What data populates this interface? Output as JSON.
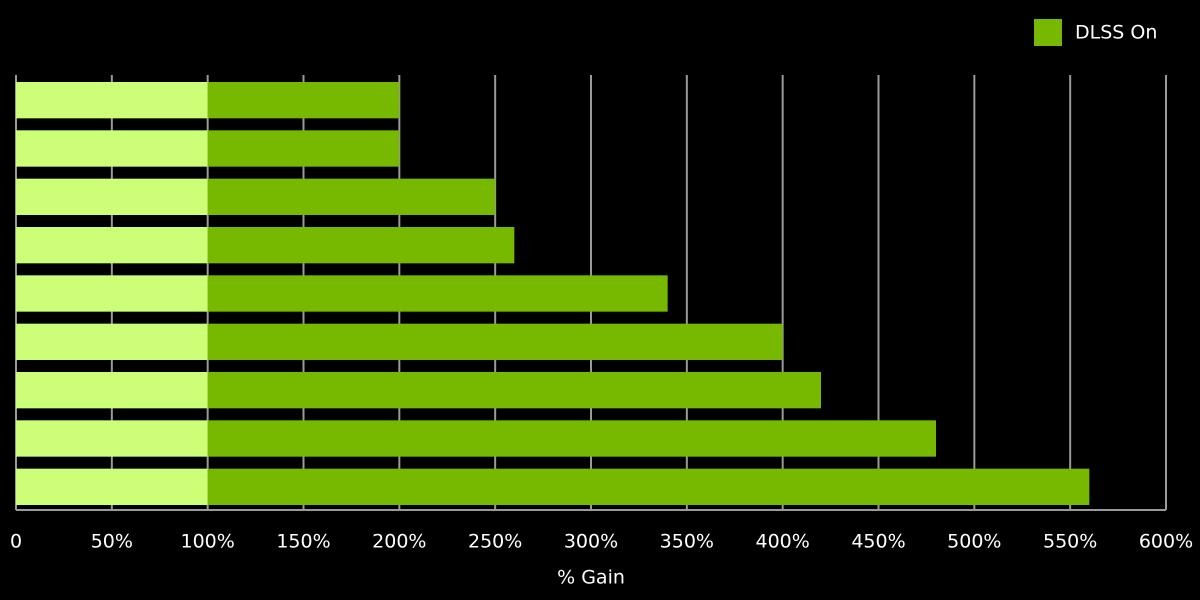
{
  "chart_data": {
    "type": "stacked-bar-horizontal",
    "x_label": "% Gain",
    "categories": [
      null,
      null,
      null,
      null,
      null,
      null,
      null,
      null,
      null
    ],
    "series": [
      {
        "color": "#ccff77",
        "values": [
          100,
          100,
          100,
          100,
          100,
          100,
          100,
          100,
          100
        ]
      },
      {
        "name": "DLSS On",
        "color": "#76b900",
        "values": [
          100,
          100,
          150,
          160,
          240,
          300,
          320,
          380,
          460
        ]
      }
    ],
    "xlim": [
      0,
      600
    ],
    "xticks": [
      0,
      {
        "value": 50,
        "label": "50%"
      },
      {
        "value": 100,
        "label": "100%"
      },
      {
        "value": 150,
        "label": "150%"
      },
      {
        "value": 200,
        "label": "200%"
      },
      {
        "value": 250,
        "label": "250%"
      },
      {
        "value": 300,
        "label": "300%"
      },
      {
        "value": 350,
        "label": "350%"
      },
      {
        "value": 400,
        "label": "400%"
      },
      {
        "value": 450,
        "label": "450%"
      },
      {
        "value": 500,
        "label": "500%"
      },
      {
        "value": 550,
        "label": "550%"
      },
      {
        "value": 600,
        "label": "600%"
      }
    ],
    "grid": true,
    "legend": "top-right"
  }
}
